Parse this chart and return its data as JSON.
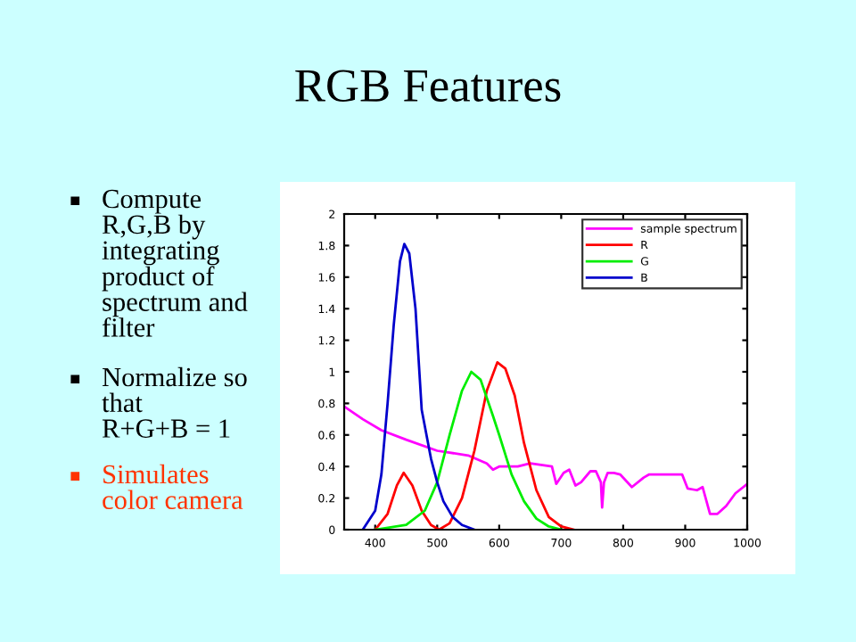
{
  "chart_data": [
    {
      "type": "other",
      "title": "RGB Features",
      "annotations": [
        "Compute\nR,G,B by\nintegrating\nproduct of\nspectrum and\nfilter",
        "Normalize so\nthat\nR+G+B = 1",
        "Simulates\ncolor camera"
      ],
      "colors": [
        "#000000",
        "#000000",
        "#ff3300"
      ]
    },
    {
      "type": "line",
      "xlim": [
        350,
        1000
      ],
      "ylim": [
        0,
        2
      ],
      "xticks": [
        400,
        500,
        600,
        700,
        800,
        900,
        1000
      ],
      "yticks": [
        0,
        0.2,
        0.4,
        0.6,
        0.8,
        1,
        1.2,
        1.4,
        1.6,
        1.8,
        2
      ],
      "legend": "top right",
      "grid": false,
      "marker": "none",
      "line_style": "solid",
      "series": [
        {
          "name": "sample spectrum",
          "color": "#ff00ff",
          "x": [
            350,
            380,
            410,
            450,
            500,
            550,
            580,
            590,
            600,
            630,
            650,
            685,
            692,
            704,
            713,
            723,
            732,
            747,
            756,
            764,
            766,
            769,
            775,
            785,
            795,
            814,
            833,
            842,
            895,
            904,
            919,
            928,
            940,
            952,
            966,
            981,
            1000
          ],
          "values": [
            0.78,
            0.7,
            0.63,
            0.57,
            0.5,
            0.47,
            0.42,
            0.38,
            0.4,
            0.4,
            0.42,
            0.4,
            0.29,
            0.36,
            0.38,
            0.28,
            0.3,
            0.37,
            0.37,
            0.3,
            0.14,
            0.3,
            0.36,
            0.36,
            0.35,
            0.27,
            0.33,
            0.35,
            0.35,
            0.26,
            0.25,
            0.27,
            0.1,
            0.1,
            0.15,
            0.23,
            0.29
          ]
        },
        {
          "name": "R",
          "color": "#ff0000",
          "x": [
            400,
            420,
            435,
            446,
            460,
            475,
            490,
            503,
            520,
            540,
            560,
            580,
            597,
            610,
            625,
            640,
            660,
            680,
            700,
            720
          ],
          "values": [
            0,
            0.1,
            0.28,
            0.36,
            0.28,
            0.12,
            0.03,
            0,
            0.04,
            0.2,
            0.5,
            0.88,
            1.06,
            1.02,
            0.85,
            0.55,
            0.25,
            0.08,
            0.02,
            0
          ]
        },
        {
          "name": "G",
          "color": "#00ee00",
          "x": [
            400,
            450,
            480,
            500,
            520,
            540,
            555,
            570,
            590,
            600,
            620,
            640,
            660,
            680,
            700
          ],
          "values": [
            0,
            0.03,
            0.12,
            0.3,
            0.6,
            0.88,
            1.0,
            0.95,
            0.72,
            0.6,
            0.35,
            0.18,
            0.07,
            0.02,
            0
          ]
        },
        {
          "name": "B",
          "color": "#0000cc",
          "x": [
            380,
            400,
            410,
            420,
            430,
            440,
            447,
            455,
            465,
            475,
            490,
            500,
            510,
            525,
            540,
            560
          ],
          "values": [
            0,
            0.12,
            0.35,
            0.8,
            1.3,
            1.7,
            1.81,
            1.75,
            1.4,
            0.76,
            0.45,
            0.3,
            0.18,
            0.08,
            0.03,
            0
          ]
        }
      ]
    }
  ]
}
